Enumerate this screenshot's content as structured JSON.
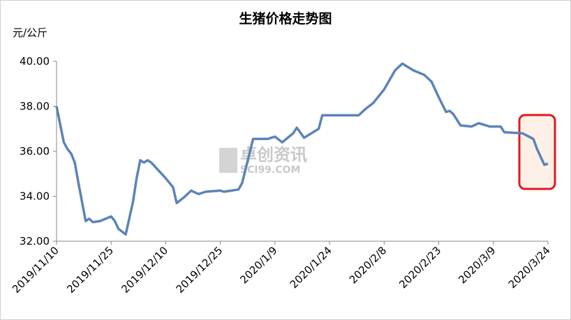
{
  "chart_data": {
    "type": "line",
    "title": "生猪价格走势图",
    "y_unit": "元/公斤",
    "watermark": [
      "卓创资讯",
      "SCI99.COM"
    ],
    "x": [
      "2019/11/10",
      "2019/11/12",
      "2019/11/13",
      "2019/11/14",
      "2019/11/15",
      "2019/11/16",
      "2019/11/18",
      "2019/11/19",
      "2019/11/20",
      "2019/11/22",
      "2019/11/25",
      "2019/11/26",
      "2019/11/27",
      "2019/11/29",
      "2019/12/1",
      "2019/12/2",
      "2019/12/3",
      "2019/12/4",
      "2019/12/5",
      "2019/12/6",
      "2019/12/10",
      "2019/12/12",
      "2019/12/13",
      "2019/12/15",
      "2019/12/17",
      "2019/12/19",
      "2019/12/21",
      "2019/12/25",
      "2019/12/26",
      "2019/12/30",
      "2019/12/31",
      "2020/1/3",
      "2020/1/7",
      "2020/1/8",
      "2020/1/9",
      "2020/1/11",
      "2020/1/14",
      "2020/1/15",
      "2020/1/17",
      "2020/1/21",
      "2020/1/22",
      "2020/1/24",
      "2020/2/1",
      "2020/2/3",
      "2020/2/5",
      "2020/2/8",
      "2020/2/11",
      "2020/2/13",
      "2020/2/14",
      "2020/2/16",
      "2020/2/19",
      "2020/2/21",
      "2020/2/23",
      "2020/2/25",
      "2020/2/26",
      "2020/2/27",
      "2020/2/29",
      "2020/3/3",
      "2020/3/5",
      "2020/3/6",
      "2020/3/8",
      "2020/3/11",
      "2020/3/12",
      "2020/3/17",
      "2020/3/20",
      "2020/3/21",
      "2020/3/23",
      "2020/3/24"
    ],
    "series": [
      {
        "name": "生猪价格",
        "color": "#5b84b8",
        "values": [
          38.0,
          36.4,
          36.1,
          35.9,
          35.5,
          34.6,
          32.9,
          33.0,
          32.85,
          32.9,
          33.1,
          32.9,
          32.55,
          32.3,
          33.75,
          34.8,
          35.6,
          35.5,
          35.6,
          35.5,
          34.8,
          34.4,
          33.7,
          33.95,
          34.25,
          34.1,
          34.2,
          34.25,
          34.2,
          34.3,
          34.6,
          36.55,
          36.55,
          36.6,
          36.65,
          36.4,
          36.8,
          37.05,
          36.6,
          37.0,
          37.6,
          37.6,
          37.6,
          37.9,
          38.15,
          38.75,
          39.6,
          39.9,
          39.8,
          39.6,
          39.4,
          39.1,
          38.4,
          37.75,
          37.8,
          37.65,
          37.15,
          37.1,
          37.25,
          37.2,
          37.1,
          37.1,
          36.85,
          36.8,
          36.55,
          36.1,
          35.4,
          35.45
        ]
      }
    ],
    "xlim": [
      "2019/11/10",
      "2020/3/24"
    ],
    "xticks": [
      "2019/11/10",
      "2019/11/25",
      "2019/12/10",
      "2019/12/25",
      "2020/1/9",
      "2020/1/24",
      "2020/2/8",
      "2020/2/23",
      "2020/3/9",
      "2020/3/24"
    ],
    "ylim": [
      32,
      40
    ],
    "yticks": [
      {
        "value": 32,
        "label": "32.00"
      },
      {
        "value": 34,
        "label": "34.00"
      },
      {
        "value": 36,
        "label": "36.00"
      },
      {
        "value": 38,
        "label": "38.00"
      },
      {
        "value": 40,
        "label": "40.00"
      }
    ],
    "grid": false
  }
}
